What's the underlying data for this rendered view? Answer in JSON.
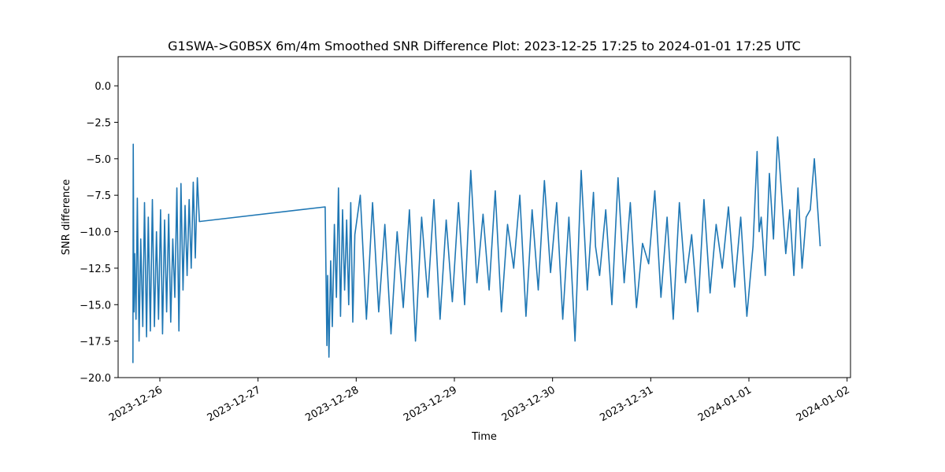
{
  "chart_data": {
    "type": "line",
    "title": "G1SWA->G0BSX 6m/4m Smoothed SNR Difference Plot: 2023-12-25 17:25 to 2024-01-01 17:25 UTC",
    "xlabel": "Time",
    "ylabel": "SNR difference",
    "xlim": [
      "2023-12-25T13:48",
      "2024-01-02T00:50"
    ],
    "ylim": [
      -20.0,
      2.0
    ],
    "grid": false,
    "x_ticks": [
      {
        "value": "2023-12-26",
        "label": "2023-12-26"
      },
      {
        "value": "2023-12-27",
        "label": "2023-12-27"
      },
      {
        "value": "2023-12-28",
        "label": "2023-12-28"
      },
      {
        "value": "2023-12-29",
        "label": "2023-12-29"
      },
      {
        "value": "2023-12-30",
        "label": "2023-12-30"
      },
      {
        "value": "2023-12-31",
        "label": "2023-12-31"
      },
      {
        "value": "2024-01-01",
        "label": "2024-01-01"
      },
      {
        "value": "2024-01-02",
        "label": "2024-01-02"
      }
    ],
    "y_ticks": [
      {
        "value": 0.0,
        "label": "0.0"
      },
      {
        "value": -2.5,
        "label": "−2.5"
      },
      {
        "value": -5.0,
        "label": "−5.0"
      },
      {
        "value": -7.5,
        "label": "−7.5"
      },
      {
        "value": -10.0,
        "label": "−10.0"
      },
      {
        "value": -12.5,
        "label": "−12.5"
      },
      {
        "value": -15.0,
        "label": "−15.0"
      },
      {
        "value": -17.5,
        "label": "−17.5"
      },
      {
        "value": -20.0,
        "label": "−20.0"
      }
    ],
    "series": [
      {
        "color": "#1f77b4",
        "x": [
          "2023-12-25T17:25",
          "2023-12-25T17:30",
          "2023-12-25T17:40",
          "2023-12-25T17:50",
          "2023-12-25T18:10",
          "2023-12-25T18:30",
          "2023-12-25T18:55",
          "2023-12-25T19:20",
          "2023-12-25T19:50",
          "2023-12-25T20:15",
          "2023-12-25T20:45",
          "2023-12-25T21:10",
          "2023-12-25T21:40",
          "2023-12-25T22:10",
          "2023-12-25T22:40",
          "2023-12-25T23:10",
          "2023-12-25T23:40",
          "2023-12-26T00:10",
          "2023-12-26T00:40",
          "2023-12-26T01:10",
          "2023-12-26T01:40",
          "2023-12-26T02:10",
          "2023-12-26T02:40",
          "2023-12-26T03:10",
          "2023-12-26T03:40",
          "2023-12-26T04:10",
          "2023-12-26T04:40",
          "2023-12-26T05:10",
          "2023-12-26T05:40",
          "2023-12-26T06:10",
          "2023-12-26T06:40",
          "2023-12-26T07:10",
          "2023-12-26T07:40",
          "2023-12-26T08:10",
          "2023-12-26T08:40",
          "2023-12-26T09:10",
          "2023-12-26T09:40",
          "2023-12-27T16:25",
          "2023-12-27T16:50",
          "2023-12-27T17:00",
          "2023-12-27T17:20",
          "2023-12-27T17:45",
          "2023-12-27T18:10",
          "2023-12-27T18:40",
          "2023-12-27T19:10",
          "2023-12-27T19:40",
          "2023-12-27T20:10",
          "2023-12-27T20:40",
          "2023-12-27T21:10",
          "2023-12-27T21:40",
          "2023-12-27T22:10",
          "2023-12-27T22:40",
          "2023-12-27T23:10",
          "2023-12-27T23:40",
          "2023-12-28T01:00",
          "2023-12-28T02:30",
          "2023-12-28T04:00",
          "2023-12-28T05:30",
          "2023-12-28T07:00",
          "2023-12-28T08:30",
          "2023-12-28T10:00",
          "2023-12-28T11:30",
          "2023-12-28T13:00",
          "2023-12-28T14:30",
          "2023-12-28T16:00",
          "2023-12-28T17:30",
          "2023-12-28T19:00",
          "2023-12-28T20:30",
          "2023-12-28T22:00",
          "2023-12-28T23:30",
          "2023-12-29T01:00",
          "2023-12-29T02:30",
          "2023-12-29T04:00",
          "2023-12-29T05:30",
          "2023-12-29T07:00",
          "2023-12-29T08:30",
          "2023-12-29T10:00",
          "2023-12-29T11:30",
          "2023-12-29T13:00",
          "2023-12-29T14:30",
          "2023-12-29T16:00",
          "2023-12-29T17:30",
          "2023-12-29T19:00",
          "2023-12-29T20:30",
          "2023-12-29T22:00",
          "2023-12-29T23:30",
          "2023-12-30T01:00",
          "2023-12-30T02:30",
          "2023-12-30T04:00",
          "2023-12-30T05:30",
          "2023-12-30T07:00",
          "2023-12-30T08:30",
          "2023-12-30T10:00",
          "2023-12-30T10:30",
          "2023-12-30T11:30",
          "2023-12-30T13:00",
          "2023-12-30T14:30",
          "2023-12-30T16:00",
          "2023-12-30T17:30",
          "2023-12-30T19:00",
          "2023-12-30T20:30",
          "2023-12-30T22:00",
          "2023-12-30T23:30",
          "2023-12-31T01:00",
          "2023-12-31T02:30",
          "2023-12-31T04:00",
          "2023-12-31T05:30",
          "2023-12-31T07:00",
          "2023-12-31T08:30",
          "2023-12-31T10:00",
          "2023-12-31T11:30",
          "2023-12-31T13:00",
          "2023-12-31T14:30",
          "2023-12-31T16:00",
          "2023-12-31T17:30",
          "2023-12-31T19:00",
          "2023-12-31T20:30",
          "2023-12-31T22:00",
          "2023-12-31T23:30",
          "2024-01-01T01:00",
          "2024-01-01T02:00",
          "2024-01-01T02:30",
          "2024-01-01T03:00",
          "2024-01-01T04:00",
          "2024-01-01T05:00",
          "2024-01-01T06:00",
          "2024-01-01T07:00",
          "2024-01-01T08:00",
          "2024-01-01T09:00",
          "2024-01-01T10:00",
          "2024-01-01T11:00",
          "2024-01-01T12:00",
          "2024-01-01T13:00",
          "2024-01-01T14:00",
          "2024-01-01T15:00",
          "2024-01-01T16:00",
          "2024-01-01T17:25"
        ],
        "y": [
          -19.0,
          -4.0,
          -15.5,
          -11.5,
          -16.0,
          -7.7,
          -17.5,
          -10.5,
          -16.5,
          -8.0,
          -17.2,
          -9.0,
          -16.8,
          -7.8,
          -16.5,
          -10.0,
          -16.0,
          -8.5,
          -17.0,
          -9.2,
          -15.5,
          -8.8,
          -16.2,
          -10.5,
          -14.5,
          -7.0,
          -16.8,
          -6.7,
          -14.0,
          -8.2,
          -13.0,
          -7.8,
          -12.5,
          -6.6,
          -11.8,
          -6.3,
          -9.3,
          -8.3,
          -17.8,
          -13.0,
          -18.6,
          -12.0,
          -16.5,
          -9.5,
          -14.5,
          -7.0,
          -15.8,
          -8.5,
          -14.0,
          -9.2,
          -15.0,
          -8.0,
          -16.2,
          -10.2,
          -7.5,
          -16.0,
          -8.0,
          -15.5,
          -9.5,
          -17.0,
          -10.0,
          -15.2,
          -8.5,
          -17.5,
          -9.0,
          -14.5,
          -7.8,
          -16.0,
          -9.2,
          -14.8,
          -8.0,
          -15.0,
          -5.8,
          -13.5,
          -8.8,
          -14.0,
          -7.2,
          -15.5,
          -9.5,
          -12.5,
          -7.5,
          -15.8,
          -8.5,
          -14.0,
          -6.5,
          -12.8,
          -8.0,
          -16.0,
          -9.0,
          -17.5,
          -5.8,
          -14.0,
          -7.3,
          -11.0,
          -13.0,
          -8.5,
          -15.0,
          -6.3,
          -13.5,
          -8.0,
          -15.2,
          -10.8,
          -12.2,
          -7.2,
          -14.5,
          -9.0,
          -16.0,
          -8.0,
          -13.5,
          -10.2,
          -15.5,
          -7.8,
          -14.2,
          -9.5,
          -12.5,
          -8.3,
          -13.8,
          -9.0,
          -15.8,
          -11.0,
          -4.5,
          -10.0,
          -9.0,
          -13.0,
          -6.0,
          -10.5,
          -3.5,
          -7.5,
          -11.5,
          -8.5,
          -13.0,
          -7.0,
          -12.5,
          -9.0,
          -8.5,
          -5.0,
          -11.0
        ]
      }
    ]
  }
}
